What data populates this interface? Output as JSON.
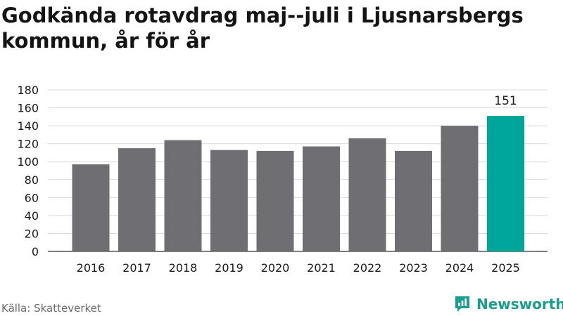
{
  "title": "Godkända rotavdrag maj--juli i Ljusnarsbergs kommun, år för år",
  "source": "Källa: Skatteverket",
  "brand": {
    "name": "Newsworthy",
    "icon": "newsworthy-logo-icon",
    "color": "#1a9c8e"
  },
  "colors": {
    "bar": "#6f6e73",
    "highlight": "#00a59a",
    "grid": "#d9d9d9"
  },
  "chart_data": {
    "type": "bar",
    "categories": [
      "2016",
      "2017",
      "2018",
      "2019",
      "2020",
      "2021",
      "2022",
      "2023",
      "2024",
      "2025"
    ],
    "values": [
      97,
      115,
      124,
      113,
      112,
      117,
      126,
      112,
      140,
      151
    ],
    "highlight_index": 9,
    "data_labels": {
      "9": "151"
    },
    "ylim": [
      0,
      180
    ],
    "yticks": [
      0,
      20,
      40,
      60,
      80,
      100,
      120,
      140,
      160,
      180
    ],
    "grid": true
  }
}
